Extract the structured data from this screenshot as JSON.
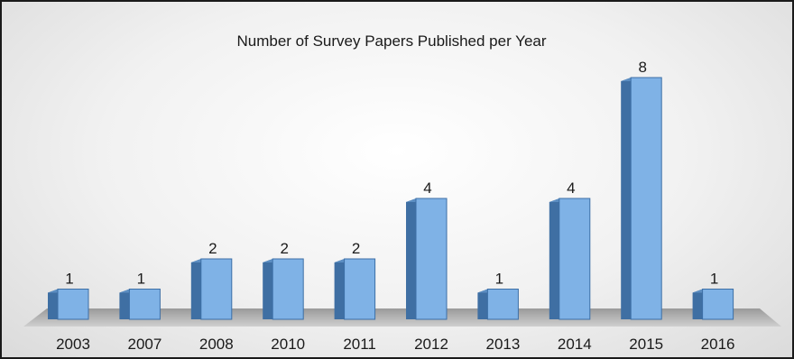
{
  "chart_data": {
    "type": "bar",
    "title": "Number of Survey Papers Published per Year",
    "categories": [
      "2003",
      "2007",
      "2008",
      "2010",
      "2011",
      "2012",
      "2013",
      "2014",
      "2015",
      "2016"
    ],
    "values": [
      1,
      1,
      2,
      2,
      2,
      4,
      1,
      4,
      8,
      1
    ],
    "xlabel": "",
    "ylabel": "",
    "ylim": [
      0,
      8
    ],
    "grid": false,
    "legend": "none",
    "data_labels": true,
    "bar_color": "#7fb2e6",
    "bar_side_color": "#3f6fa3"
  }
}
